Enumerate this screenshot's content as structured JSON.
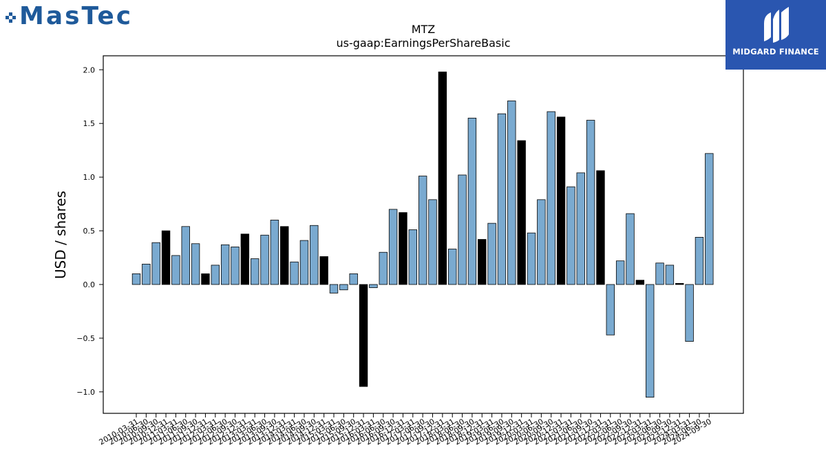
{
  "brand_left": {
    "name": "MasTec",
    "color": "#1f5a9a"
  },
  "brand_right": {
    "name": "MIDGARD FINANCE",
    "background": "#2a56b0"
  },
  "chart_data": {
    "type": "bar",
    "title": "MTZ",
    "subtitle": "us-gaap:EarningsPerShareBasic",
    "xlabel": "",
    "ylabel": "USD / shares",
    "ylim": [
      -1.2,
      2.13
    ],
    "yticks": [
      -1.0,
      -0.5,
      0.0,
      0.5,
      1.0,
      1.5,
      2.0
    ],
    "ytick_labels": [
      "−1.0",
      "−0.5",
      "0.0",
      "0.5",
      "1.0",
      "1.5",
      "2.0"
    ],
    "grid": false,
    "legend": "none",
    "colors": {
      "quarter": "#7aaad0",
      "annual": "#000000",
      "edge": "#000000"
    },
    "categories": [
      "2010-03-31",
      "2010-06-30",
      "2010-09-30",
      "2010-12-31",
      "2011-03-31",
      "2011-06-30",
      "2011-09-30",
      "2011-12-31",
      "2012-03-31",
      "2012-06-30",
      "2012-09-30",
      "2012-12-31",
      "2013-03-31",
      "2013-06-30",
      "2013-09-30",
      "2013-12-31",
      "2014-03-31",
      "2014-06-30",
      "2014-09-30",
      "2014-12-31",
      "2015-03-31",
      "2015-06-30",
      "2015-09-30",
      "2015-12-31",
      "2016-03-31",
      "2016-06-30",
      "2016-09-30",
      "2016-12-31",
      "2017-03-31",
      "2017-06-30",
      "2017-09-30",
      "2017-12-31",
      "2018-03-31",
      "2018-06-30",
      "2018-09-30",
      "2018-12-31",
      "2019-03-31",
      "2019-06-30",
      "2019-09-30",
      "2019-12-31",
      "2020-03-31",
      "2020-06-30",
      "2020-09-30",
      "2020-12-31",
      "2021-03-31",
      "2021-06-30",
      "2021-09-30",
      "2021-12-31",
      "2022-03-31",
      "2022-06-30",
      "2022-09-30",
      "2022-12-31",
      "2023-03-31",
      "2023-06-30",
      "2023-09-30",
      "2023-12-31",
      "2024-03-31",
      "2024-06-30",
      "2024-09-30"
    ],
    "values": [
      0.1,
      0.19,
      0.39,
      0.5,
      0.27,
      0.54,
      0.38,
      0.1,
      0.18,
      0.37,
      0.35,
      0.47,
      0.24,
      0.46,
      0.6,
      0.54,
      0.21,
      0.41,
      0.55,
      0.26,
      -0.08,
      -0.05,
      0.1,
      -0.95,
      -0.03,
      0.3,
      0.7,
      0.67,
      0.51,
      1.01,
      0.79,
      1.98,
      0.33,
      1.02,
      1.55,
      0.42,
      0.57,
      1.59,
      1.71,
      1.34,
      0.48,
      0.79,
      1.61,
      1.56,
      0.91,
      1.04,
      1.53,
      1.06,
      -0.47,
      0.22,
      0.66,
      0.04,
      -1.05,
      0.2,
      0.18,
      0.01,
      -0.53,
      0.44,
      1.22
    ],
    "annual_flags": [
      0,
      0,
      0,
      1,
      0,
      0,
      0,
      1,
      0,
      0,
      0,
      1,
      0,
      0,
      0,
      1,
      0,
      0,
      0,
      1,
      0,
      0,
      0,
      1,
      0,
      0,
      0,
      1,
      0,
      0,
      0,
      1,
      0,
      0,
      0,
      1,
      0,
      0,
      0,
      1,
      0,
      0,
      0,
      1,
      0,
      0,
      0,
      1,
      0,
      0,
      0,
      1,
      0,
      0,
      0,
      1,
      0,
      0,
      0
    ]
  }
}
